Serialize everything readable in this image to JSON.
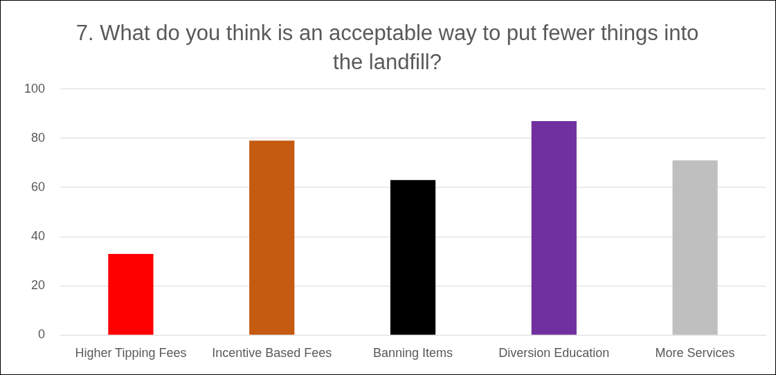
{
  "chart_data": {
    "type": "bar",
    "title": "7. What do you think is an acceptable way to put fewer things into the landfill?",
    "categories": [
      "Higher Tipping Fees",
      "Incentive Based Fees",
      "Banning Items",
      "Diversion Education",
      "More Services"
    ],
    "values": [
      33,
      79,
      63,
      87,
      71
    ],
    "colors": [
      "#ff0000",
      "#c55a11",
      "#000000",
      "#7030a0",
      "#bfbfbf"
    ],
    "ylim": [
      0,
      100
    ],
    "yticks": [
      0,
      20,
      40,
      60,
      80,
      100
    ],
    "grid": "y",
    "legend": false
  }
}
